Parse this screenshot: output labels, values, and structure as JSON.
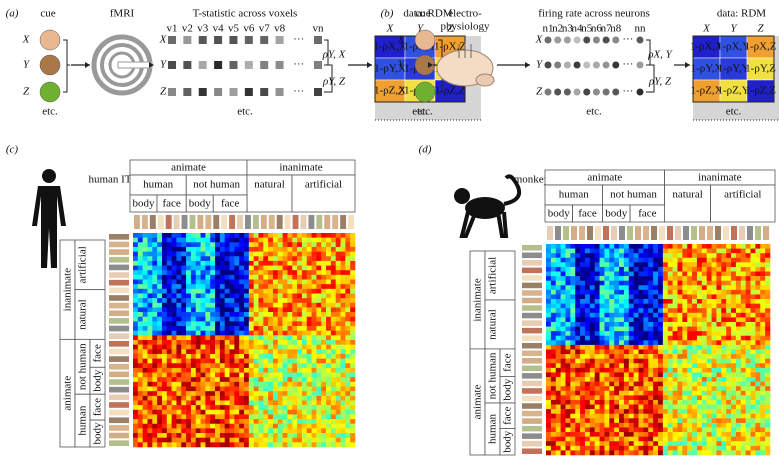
{
  "top_panels": [
    {
      "label": "(a)",
      "cue": "cue",
      "modality": [
        "fMRI"
      ],
      "measure": "T-statistic across voxels",
      "output": "data: RDM",
      "stimuli": [
        "X",
        "Y",
        "Z"
      ],
      "units": [
        "v1",
        "v2",
        "v3",
        "v4",
        "v5",
        "v6",
        "v7",
        "v8",
        "vn"
      ],
      "correlations": [
        "ρY, X",
        "ρY, Z"
      ],
      "columns": [
        "X",
        "Y",
        "Z"
      ],
      "cells": [
        [
          "1-ρX,X",
          "1-ρX,Y",
          "1-ρX,Z"
        ],
        [
          "1-ρY,X",
          "1-ρY,Y",
          "1-ρY,Z"
        ],
        [
          "1-ρZ,X",
          "1-ρZ,Y",
          "1-ρZ,Z"
        ]
      ],
      "etc": [
        "etc.",
        "etc.",
        "etc."
      ]
    },
    {
      "label": "(b)",
      "cue": "cue",
      "modality": [
        "electro-",
        "physiology"
      ],
      "measure": "firing rate across neurons",
      "output": "data: RDM",
      "stimuli": [
        "X",
        "Y",
        "Z"
      ],
      "units": [
        "n1",
        "n2",
        "n3",
        "n4",
        "n5",
        "n6",
        "n7",
        "n8",
        "nn"
      ],
      "correlations": [
        "ρX, Y",
        "ρY, Z"
      ],
      "columns": [
        "X",
        "Y",
        "Z"
      ],
      "cells": [
        [
          "1-ρX,X",
          "1-ρX,Y",
          "1-ρX,Z"
        ],
        [
          "1-ρY,X",
          "1-ρY,Y",
          "1-ρY,Z"
        ],
        [
          "1-ρZ,X",
          "1-ρZ,Y",
          "1-ρZ,Z"
        ]
      ],
      "etc": [
        "etc.",
        "etc.",
        "etc."
      ]
    }
  ],
  "rdm_panels": [
    {
      "label": "(c)",
      "subject": "human IT",
      "level1": [
        "animate",
        "inanimate"
      ],
      "level2": [
        "human",
        "not human",
        "natural",
        "artificial"
      ],
      "level3": [
        "body",
        "face",
        "body",
        "face"
      ]
    },
    {
      "label": "(d)",
      "subject": "monkey IT",
      "level1": [
        "animate",
        "inanimate"
      ],
      "level2": [
        "human",
        "not human",
        "natural",
        "artificial"
      ],
      "level3": [
        "body",
        "face",
        "body",
        "face"
      ]
    }
  ]
}
